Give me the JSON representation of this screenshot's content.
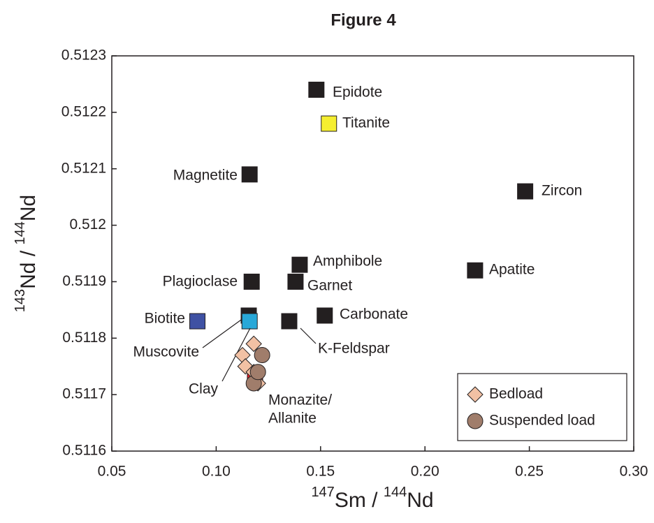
{
  "chart_data": {
    "type": "scatter",
    "title": "Figure 4",
    "xlabel": [
      "147",
      "Sm / ",
      "144",
      "Nd"
    ],
    "ylabel": [
      "143",
      "Nd / ",
      "144",
      "Nd"
    ],
    "xlim": [
      0.05,
      0.3
    ],
    "ylim": [
      0.5116,
      0.5123
    ],
    "xticks": [
      0.05,
      {
        "value": 0.1,
        "label": "0.10"
      },
      0.15,
      {
        "value": 0.2,
        "label": "0.20"
      },
      0.25,
      {
        "value": 0.3,
        "label": "0.30"
      }
    ],
    "yticks": [
      0.5116,
      0.5117,
      0.5118,
      0.5119,
      0.512,
      0.5121,
      0.5122,
      0.5123
    ],
    "legend": "lower right",
    "series": [
      {
        "name": "Bedload",
        "color": "#f2c1a4",
        "marker": "diamond",
        "x": [
          0.118,
          0.1126,
          0.114,
          0.118,
          0.12
        ],
        "y": [
          0.51179,
          0.51177,
          0.51175,
          0.51174,
          0.51172
        ]
      },
      {
        "name": "Suspended load",
        "color": "#a07d6b",
        "marker": "circle",
        "x": [
          0.122,
          0.118,
          0.12
        ],
        "y": [
          0.51177,
          0.51172,
          0.51174
        ]
      }
    ],
    "minerals": {
      "names": [
        "Epidote",
        "Titanite",
        "Magnetite",
        "Zircon",
        "Amphibole",
        "Garnet",
        "Apatite",
        "Plagioclase",
        "Biotite",
        "Muscovite",
        "Clay",
        "Carbonate",
        "K-Feldspar",
        [
          "Monazite/",
          "Allanite"
        ]
      ],
      "x": [
        0.148,
        0.154,
        0.116,
        0.248,
        0.14,
        0.138,
        0.224,
        0.117,
        0.091,
        0.1156,
        0.116,
        0.152,
        0.135,
        0.1186
      ],
      "y": [
        0.51224,
        0.51218,
        0.51209,
        0.51206,
        0.51193,
        0.5119,
        0.51192,
        0.5119,
        0.51183,
        0.51184,
        0.51183,
        0.51184,
        0.51183,
        0.51173
      ],
      "colors": [
        "#231f20",
        "#f5ee30",
        "#231f20",
        "#231f20",
        "#231f20",
        "#231f20",
        "#231f20",
        "#231f20",
        "#3f51a3",
        "#231f20",
        "#29a8d8",
        "#231f20",
        "#231f20",
        "#ee1c25"
      ]
    }
  }
}
